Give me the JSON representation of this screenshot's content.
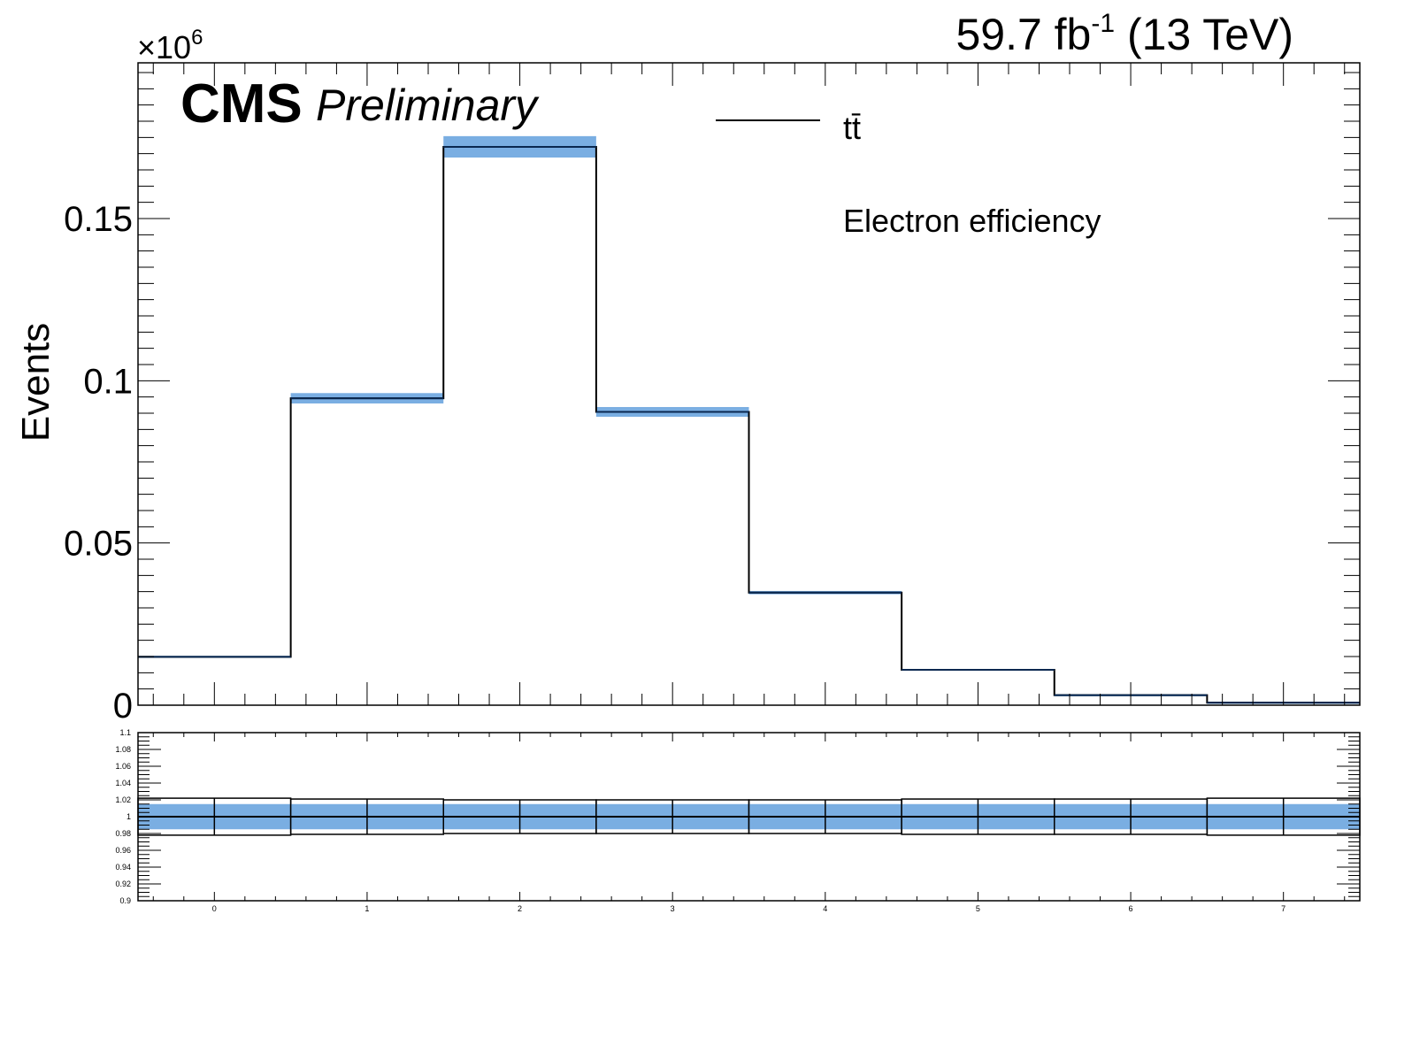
{
  "header": {
    "lumi_value": "59.7 fb",
    "lumi_exp": "-1",
    "lumi_energy": " (13 TeV)",
    "cms": "CMS",
    "preliminary": "Preliminary",
    "multiplier": "×10",
    "multiplier_exp": "6"
  },
  "legend": {
    "entry": "tt̄",
    "note": "Electron efficiency"
  },
  "colors": {
    "band": "#7aaee2",
    "line": "#000000",
    "series_line": "#0a2850"
  },
  "chart_data": [
    {
      "type": "bar",
      "style": "step histogram with uncertainty band",
      "x_bin_edges": [
        -0.5,
        0.5,
        1.5,
        2.5,
        3.5,
        4.5,
        5.5,
        6.5,
        7.5
      ],
      "series": [
        {
          "name": "tt̄",
          "values": [
            0.0149,
            0.0946,
            0.1721,
            0.0904,
            0.0347,
            0.0109,
            0.0031,
            0.0008
          ]
        }
      ],
      "band_halfwidth": [
        0.0003,
        0.0016,
        0.0033,
        0.0015,
        0.0005,
        0.0002,
        6e-05,
        2e-05
      ],
      "ylabel": "Events",
      "ylim": [
        0,
        0.198
      ],
      "y_multiplier": "×10^6",
      "yticks": [
        {
          "value": 0,
          "label": "0"
        },
        {
          "value": 0.05,
          "label": "0.05"
        },
        {
          "value": 0.1,
          "label": "0.1"
        },
        {
          "value": 0.15,
          "label": "0.15"
        }
      ],
      "xlim": [
        -0.5,
        7.5
      ],
      "grid": false
    },
    {
      "type": "line",
      "style": "ratio panel with uncertainty band",
      "x_bin_edges": [
        -0.5,
        0.5,
        1.5,
        2.5,
        3.5,
        4.5,
        5.5,
        6.5,
        7.5
      ],
      "center": [
        1,
        1,
        1,
        1,
        1,
        1,
        1,
        1
      ],
      "outer_low": [
        0.978,
        0.979,
        0.98,
        0.98,
        0.98,
        0.979,
        0.979,
        0.978
      ],
      "outer_high": [
        1.022,
        1.021,
        1.02,
        1.02,
        1.02,
        1.021,
        1.021,
        1.022
      ],
      "band_low": [
        0.985,
        0.985,
        0.985,
        0.985,
        0.985,
        0.985,
        0.985,
        0.985
      ],
      "band_high": [
        1.015,
        1.015,
        1.015,
        1.015,
        1.015,
        1.015,
        1.015,
        1.015
      ],
      "ylim": [
        0.9,
        1.1
      ],
      "yticks": [
        {
          "value": 0.9,
          "label": "0.9"
        },
        {
          "value": 0.92,
          "label": "0.92"
        },
        {
          "value": 0.94,
          "label": "0.94"
        },
        {
          "value": 0.96,
          "label": "0.96"
        },
        {
          "value": 0.98,
          "label": "0.98"
        },
        {
          "value": 1.0,
          "label": "1"
        },
        {
          "value": 1.02,
          "label": "1.02"
        },
        {
          "value": 1.04,
          "label": "1.04"
        },
        {
          "value": 1.06,
          "label": "1.06"
        },
        {
          "value": 1.08,
          "label": "1.08"
        },
        {
          "value": 1.1,
          "label": "1.1"
        }
      ],
      "xticks": [
        {
          "value": 0,
          "label": "0"
        },
        {
          "value": 1,
          "label": "1"
        },
        {
          "value": 2,
          "label": "2"
        },
        {
          "value": 3,
          "label": "3"
        },
        {
          "value": 4,
          "label": "4"
        },
        {
          "value": 5,
          "label": "5"
        },
        {
          "value": 6,
          "label": "6"
        },
        {
          "value": 7,
          "label": "7"
        }
      ],
      "xlim": [
        -0.5,
        7.5
      ]
    }
  ]
}
